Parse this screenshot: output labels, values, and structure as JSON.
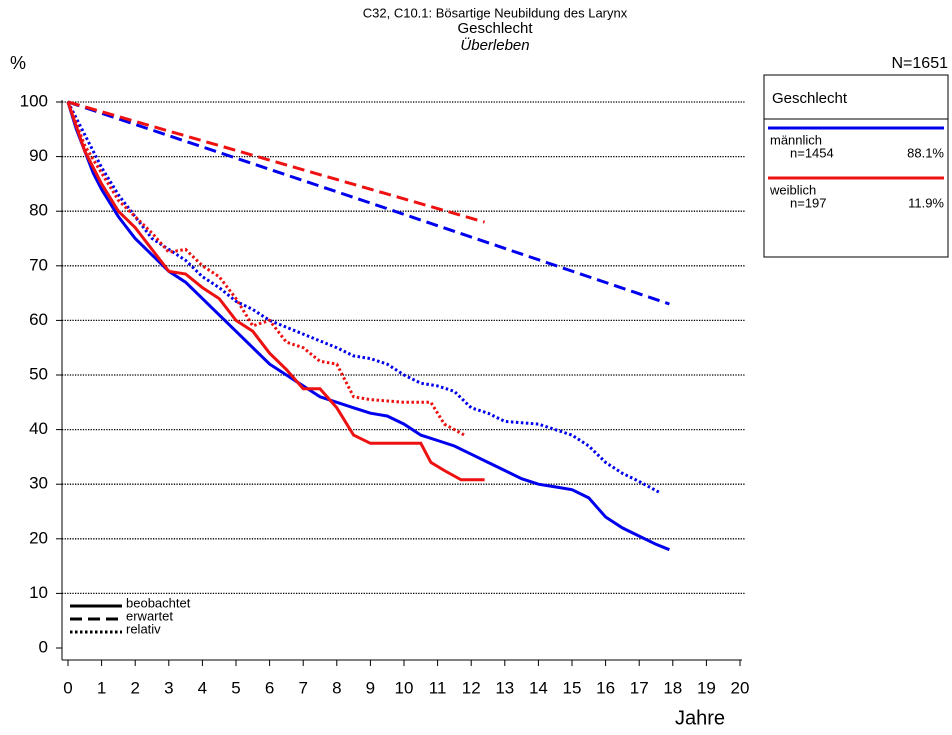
{
  "chart_data": {
    "type": "line",
    "title": "C32, C10.1: Bösartige Neubildung des Larynx",
    "subtitle": "Geschlecht",
    "subtitle2": "Überleben",
    "y_label": "%",
    "x_label": "Jahre",
    "total_label": "N=1651",
    "xlim": [
      0,
      20
    ],
    "xticks": [
      0,
      1,
      2,
      3,
      4,
      5,
      6,
      7,
      8,
      9,
      10,
      11,
      12,
      13,
      14,
      15,
      16,
      17,
      18,
      19,
      20
    ],
    "ylim": [
      0,
      100
    ],
    "yticks": [
      0,
      10,
      20,
      30,
      40,
      50,
      60,
      70,
      80,
      90,
      100
    ],
    "grid": true,
    "legend": {
      "title": "Geschlecht",
      "entries": [
        {
          "name": "männlich",
          "color": "#0000ee",
          "n_label": "n=1454",
          "share_label": "88.1%"
        },
        {
          "name": "weiblich",
          "color": "#ee1111",
          "n_label": "n=197",
          "share_label": "11.9%"
        }
      ]
    },
    "line_styles": [
      {
        "name": "beobachtet",
        "dash": "solid"
      },
      {
        "name": "erwartet",
        "dash": "dashed"
      },
      {
        "name": "relativ",
        "dash": "dotted"
      }
    ],
    "series": [
      {
        "name": "männlich",
        "style": "erwartet",
        "color": "#0000ee",
        "x": [
          0,
          9,
          17.9
        ],
        "values": [
          100,
          81.5,
          63
        ]
      },
      {
        "name": "weiblich",
        "style": "erwartet",
        "color": "#ee1111",
        "x": [
          0,
          12.4
        ],
        "values": [
          100,
          78
        ]
      },
      {
        "name": "männlich",
        "style": "relativ",
        "color": "#0000ee",
        "x": [
          0,
          0.5,
          1,
          1.5,
          2,
          2.5,
          3,
          3.5,
          4,
          4.5,
          5,
          5.5,
          6,
          7,
          8,
          8.5,
          9,
          9.5,
          10,
          10.5,
          11,
          11.5,
          12,
          12.5,
          13,
          14,
          14.5,
          15,
          15.5,
          16,
          16.5,
          17,
          17.6
        ],
        "values": [
          100,
          94,
          88,
          83,
          79,
          75,
          73,
          71,
          68,
          66,
          63.5,
          62,
          60,
          57.5,
          55,
          53.5,
          53,
          52,
          50,
          48.5,
          48,
          47,
          44,
          43,
          41.5,
          41,
          40,
          39,
          37,
          34,
          32,
          30.5,
          28.5
        ]
      },
      {
        "name": "weiblich",
        "style": "relativ",
        "color": "#ee1111",
        "x": [
          0,
          0.5,
          1,
          1.5,
          2,
          2.5,
          3,
          3.5,
          4,
          4.5,
          5,
          5.5,
          6,
          6.5,
          7,
          7.5,
          8,
          8.5,
          9,
          10,
          10.8,
          11.2,
          11.8
        ],
        "values": [
          100,
          92,
          87,
          82,
          79,
          76,
          72.5,
          73,
          70,
          68,
          64,
          59,
          60,
          56,
          55,
          52.5,
          52,
          46,
          45.5,
          45,
          45,
          41,
          39
        ]
      },
      {
        "name": "männlich",
        "style": "beobachtet",
        "color": "#0000ee",
        "x": [
          0,
          0.25,
          0.5,
          0.75,
          1,
          1.5,
          2,
          2.5,
          3,
          3.5,
          4,
          4.5,
          5,
          5.5,
          6,
          6.5,
          7,
          7.5,
          8,
          8.5,
          9,
          9.5,
          10,
          10.5,
          11,
          11.5,
          12,
          12.5,
          13,
          13.5,
          14,
          14.5,
          15,
          15.5,
          16,
          16.5,
          17,
          17.5,
          17.9
        ],
        "values": [
          100,
          95,
          91,
          87,
          84,
          79,
          75,
          72,
          69,
          67,
          64,
          61,
          58,
          55,
          52,
          50,
          48,
          46,
          45,
          44,
          43,
          42.5,
          41,
          39,
          38,
          37,
          35.5,
          34,
          32.5,
          31,
          30,
          29.5,
          29,
          27.5,
          24,
          22,
          20.5,
          19,
          18
        ]
      },
      {
        "name": "weiblich",
        "style": "beobachtet",
        "color": "#ee1111",
        "x": [
          0,
          0.5,
          1,
          1.5,
          2,
          2.5,
          3,
          3.5,
          4,
          4.5,
          5,
          5.5,
          6,
          6.5,
          7,
          7.5,
          8,
          8.5,
          9,
          10,
          10.5,
          10.8,
          11.2,
          11.7,
          12.4
        ],
        "values": [
          100,
          91,
          85,
          80,
          77,
          73,
          69,
          68.5,
          66,
          64,
          60,
          58,
          54,
          51,
          47.5,
          47.5,
          44,
          39,
          37.5,
          37.5,
          37.5,
          34,
          32.5,
          30.8,
          30.8
        ]
      }
    ]
  }
}
